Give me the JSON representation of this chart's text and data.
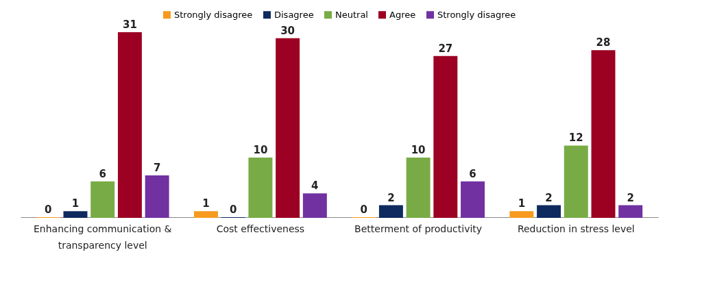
{
  "chart_data": {
    "type": "bar",
    "categories": [
      "Enhancing communication & transparency level",
      "Cost effectiveness",
      "Betterment of productivity",
      "Reduction in stress level"
    ],
    "series": [
      {
        "name": "Strongly disagree",
        "color": "#f79a1e",
        "values": [
          0,
          1,
          0,
          1
        ]
      },
      {
        "name": "Disagree",
        "color": "#0e2a5e",
        "values": [
          1,
          0,
          2,
          2
        ]
      },
      {
        "name": "Neutral",
        "color": "#78ab46",
        "values": [
          6,
          10,
          10,
          12
        ]
      },
      {
        "name": "Agree",
        "color": "#9c0022",
        "values": [
          31,
          30,
          27,
          28
        ]
      },
      {
        "name": "Strongly disagree",
        "color": "#7131a1",
        "values": [
          7,
          4,
          6,
          2
        ]
      }
    ],
    "data_labels": true,
    "legend": "top"
  }
}
